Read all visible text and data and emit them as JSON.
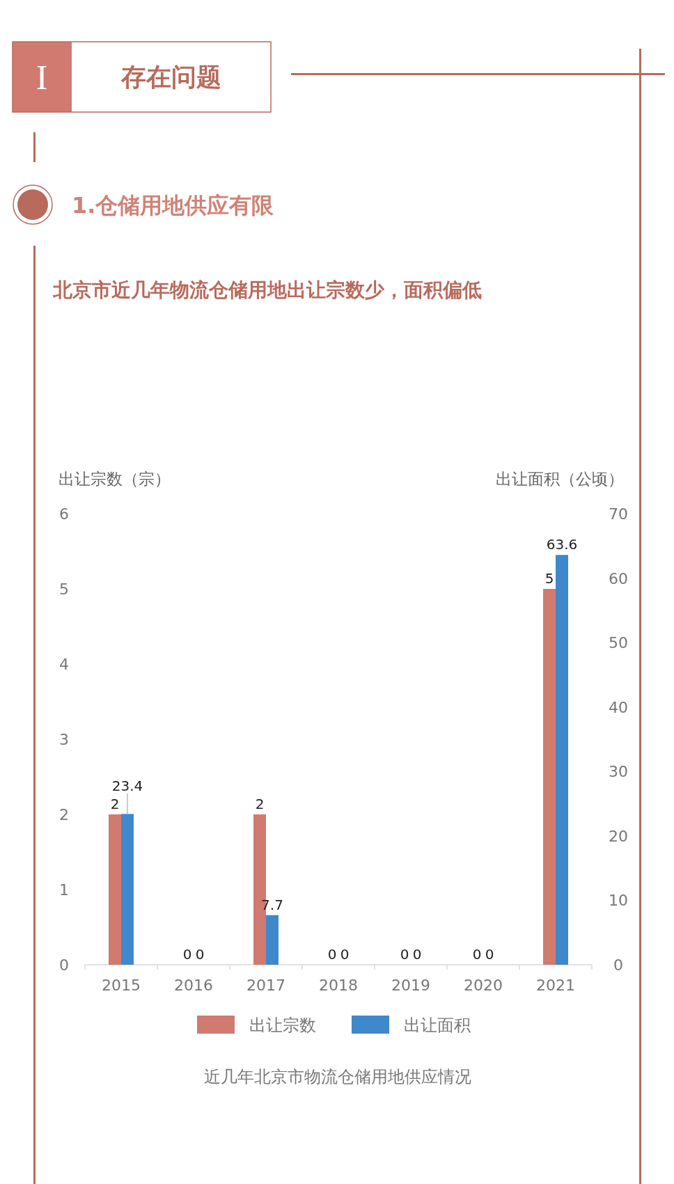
{
  "chart_data": {
    "type": "bar",
    "title": "北京市近几年物流仓储用地出让宗数少，面积偏低",
    "ylabel": "出让宗数（宗）",
    "y2label": "出让面积（公顷）",
    "categories": [
      "2015",
      "2016",
      "2017",
      "2018",
      "2019",
      "2020",
      "2021"
    ],
    "series": [
      {
        "name": "出让宗数",
        "color": "#d07a70",
        "values": [
          2,
          0,
          2,
          0,
          0,
          0,
          5
        ]
      },
      {
        "name": "出让面积",
        "color": "#3f88cc",
        "axis": "y2",
        "values": [
          23.4,
          0,
          7.7,
          0,
          0,
          0,
          63.6
        ]
      }
    ],
    "ylim": [
      0,
      6
    ],
    "yticks": [
      0,
      1,
      2,
      3,
      4,
      5,
      6
    ],
    "y2lim": [
      0,
      70
    ],
    "y2ticks": [
      0,
      10,
      20,
      30,
      40,
      50,
      60,
      70
    ],
    "data_labels": true,
    "grid": false,
    "legend": "bottom",
    "annotations": [
      "I",
      "存在问题",
      "1.仓储用地供应有限",
      "近几年北京市物流仓储用地供应情况"
    ]
  }
}
